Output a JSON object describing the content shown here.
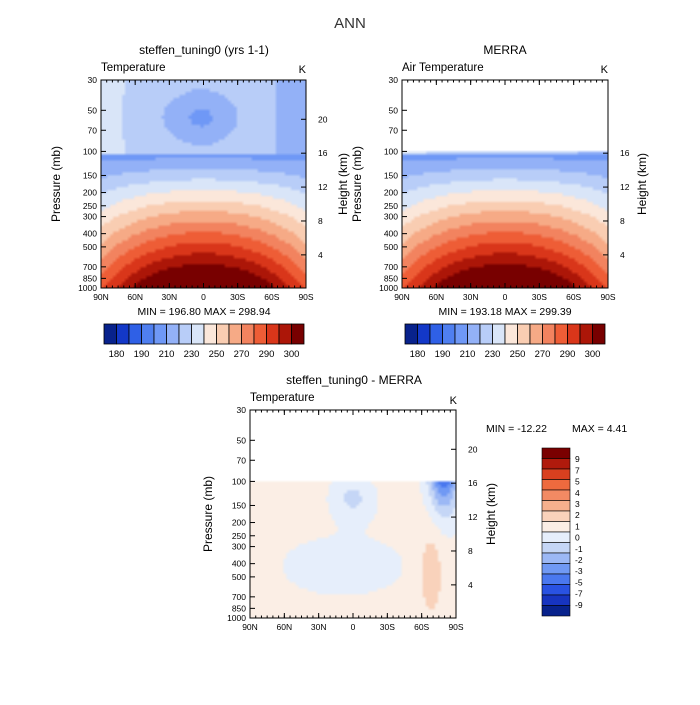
{
  "page_title": "ANN",
  "colors": {
    "cold_to_warm": [
      "#08228c",
      "#1338c8",
      "#2f60e6",
      "#4f7ff0",
      "#6f98f6",
      "#93b1f7",
      "#b8cdf8",
      "#d9e5f8",
      "#fbe7da",
      "#f9cdb2",
      "#f6aa86",
      "#f2835f",
      "#ee5d36",
      "#d9361a",
      "#ac1608",
      "#780000"
    ],
    "diff": [
      "#08228c",
      "#1734c0",
      "#2952e2",
      "#4a78ef",
      "#7099f4",
      "#9cb8f5",
      "#c5d6f6",
      "#e6eefb",
      "#fbeee5",
      "#f9d2bb",
      "#f6b08d",
      "#f28a63",
      "#ee6a3e",
      "#d9401f",
      "#b01a0c",
      "#7a0000"
    ],
    "border": "#000000"
  },
  "chart_data": [
    {
      "id": "model",
      "type": "heatmap",
      "title": "steffen_tuning0 (yrs 1-1)",
      "left_string": "Temperature",
      "right_string": "K",
      "ylabel": "Pressure (mb)",
      "ylabel_right": "Height (km)",
      "xticks": [
        "90N",
        "60N",
        "30N",
        "0",
        "30S",
        "60S",
        "90S"
      ],
      "yticks": [
        "30",
        "50",
        "70",
        "100",
        "150",
        "200",
        "250",
        "300",
        "400",
        "500",
        "700",
        "850",
        "1000"
      ],
      "height_ticks": [
        "20",
        "16",
        "12",
        "8",
        "4"
      ],
      "plim": [
        30,
        1000
      ],
      "masked_above_p": null,
      "stats": "MIN = 196.80   MAX = 298.94",
      "colorbar_labels": [
        "180",
        "190",
        "210",
        "230",
        "250",
        "270",
        "290",
        "300"
      ]
    },
    {
      "id": "obs",
      "type": "heatmap",
      "title": "MERRA",
      "left_string": "Air Temperature",
      "right_string": "K",
      "ylabel": "Pressure (mb)",
      "ylabel_right": "Height (km)",
      "xticks": [
        "90N",
        "60N",
        "30N",
        "0",
        "30S",
        "60S",
        "90S"
      ],
      "yticks": [
        "30",
        "50",
        "70",
        "100",
        "150",
        "200",
        "250",
        "300",
        "400",
        "500",
        "700",
        "850",
        "1000"
      ],
      "height_ticks": [
        "16",
        "12",
        "8",
        "4"
      ],
      "plim": [
        30,
        1000
      ],
      "masked_above_p": 100,
      "stats": "MIN = 193.18   MAX = 299.39",
      "colorbar_labels": [
        "180",
        "190",
        "210",
        "230",
        "250",
        "270",
        "290",
        "300"
      ]
    },
    {
      "id": "diff",
      "type": "heatmap",
      "title": "steffen_tuning0 - MERRA",
      "left_string": "Temperature",
      "right_string": "K",
      "ylabel": "Pressure (mb)",
      "ylabel_right": "Height (km)",
      "xticks": [
        "90N",
        "60N",
        "30N",
        "0",
        "30S",
        "60S",
        "90S"
      ],
      "yticks": [
        "30",
        "50",
        "70",
        "100",
        "150",
        "200",
        "250",
        "300",
        "400",
        "500",
        "700",
        "850",
        "1000"
      ],
      "height_ticks": [
        "20",
        "16",
        "12",
        "8",
        "4"
      ],
      "plim": [
        30,
        1000
      ],
      "masked_above_p": 100,
      "stats_min": "MIN = -12.22",
      "stats_max": "MAX =    4.41",
      "colorbar_labels": [
        "9",
        "7",
        "5",
        "4",
        "3",
        "2",
        "1",
        "0",
        "-1",
        "-2",
        "-3",
        "-5",
        "-7",
        "-9"
      ]
    }
  ]
}
